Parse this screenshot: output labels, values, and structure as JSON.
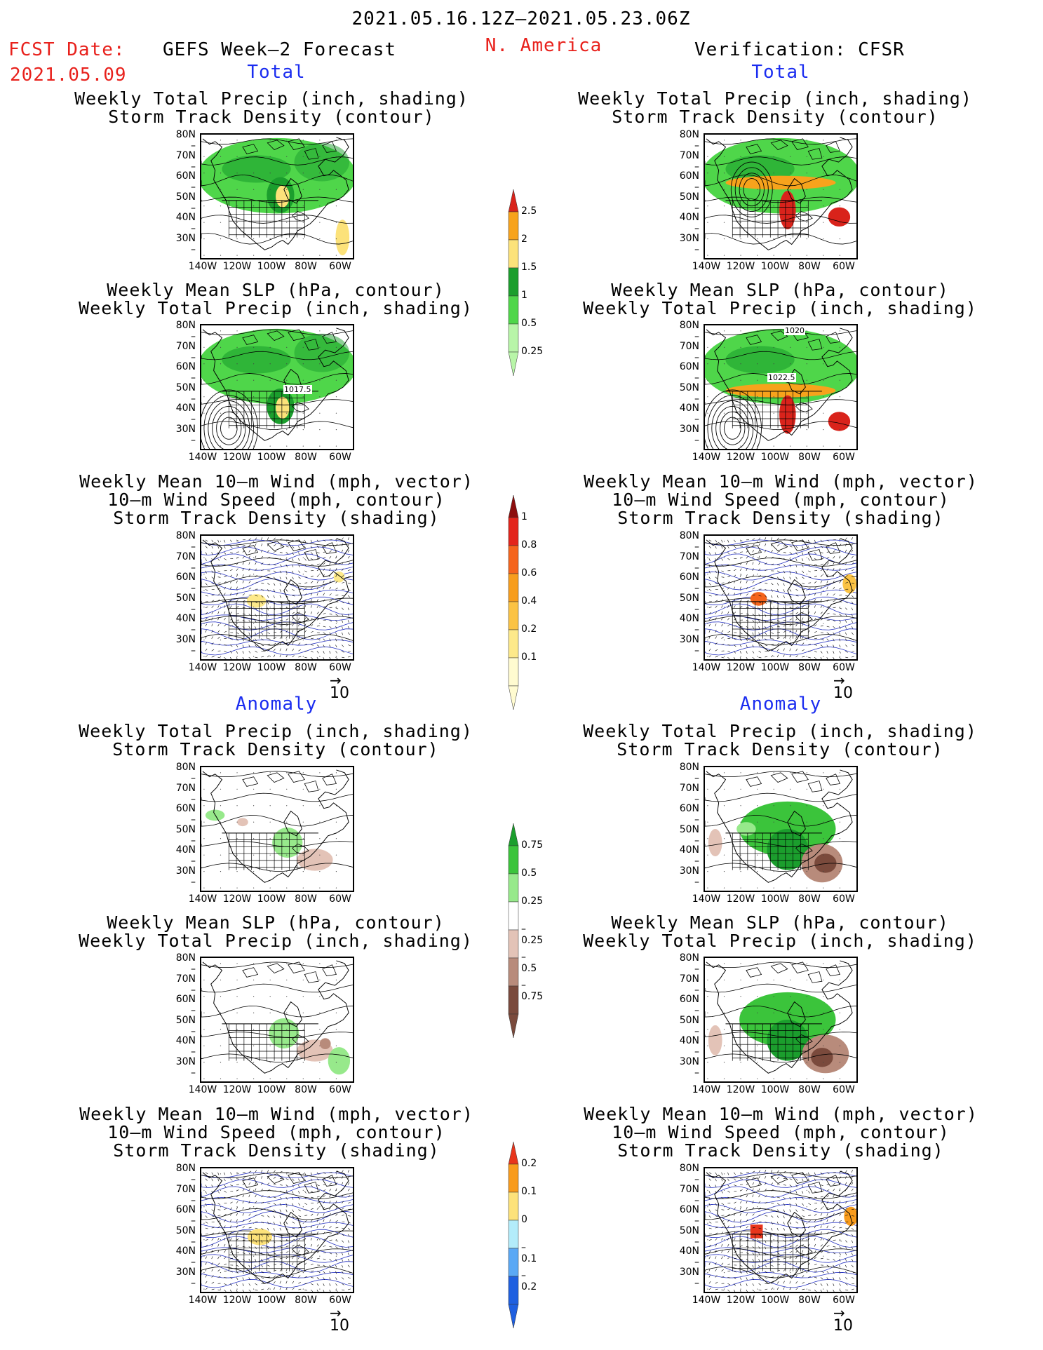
{
  "header": {
    "period": "2021.05.16.12Z–2021.05.23.06Z",
    "fcst_label": "FCST Date:",
    "fcst_date": "2021.05.09",
    "left_title": "GEFS Week–2 Forecast",
    "region": "N. America",
    "right_title": "Verification: CFSR"
  },
  "sections": {
    "total": "Total",
    "anomaly": "Anomaly"
  },
  "panel_titles": {
    "precip_track": [
      "Weekly Total Precip (inch, shading)",
      "Storm Track Density (contour)"
    ],
    "slp_precip": [
      "Weekly Mean SLP (hPa, contour)",
      "Weekly Total Precip (inch, shading)"
    ],
    "wind_track": [
      "Weekly Mean 10–m Wind (mph, vector)",
      "10–m Wind Speed (mph, contour)",
      "Storm Track Density (shading)"
    ]
  },
  "axes": {
    "lat_ticks": [
      "80N",
      "70N",
      "60N",
      "50N",
      "40N",
      "30N"
    ],
    "lon_ticks": [
      "140W",
      "120W",
      "100W",
      "80W",
      "60W"
    ]
  },
  "contour_labels": {
    "gefs_slp": "1017.5",
    "cfsr_slp_1": "1020",
    "cfsr_slp_2": "1022.5"
  },
  "vector_reference": "10",
  "colorbars": {
    "precip_total": {
      "levels": [
        "2.5",
        "2",
        "1.5",
        "1",
        "0.5",
        "0.25"
      ],
      "colors": [
        "#d9231b",
        "#f7a31c",
        "#fce27a",
        "#1b9e2d",
        "#4fd64a",
        "#b8f5a8"
      ]
    },
    "track_total": {
      "levels": [
        "1",
        "0.8",
        "0.6",
        "0.4",
        "0.2",
        "0.1"
      ],
      "colors": [
        "#8c0d0d",
        "#e3241b",
        "#f5641c",
        "#f79d1c",
        "#fbc344",
        "#fde98a",
        "#fffbd0"
      ]
    },
    "precip_anom": {
      "levels": [
        "0.75",
        "0.5",
        "0.25",
        "–0.25",
        "–0.5",
        "–0.75"
      ],
      "colors": [
        "#1b9e2d",
        "#3bc43b",
        "#97e98b",
        "#ffffff",
        "#e3c3b7",
        "#b88b7b",
        "#7a4a3c"
      ]
    },
    "track_anom": {
      "levels": [
        "0.2",
        "0.1",
        "0",
        "–0.1",
        "–0.2"
      ],
      "colors": [
        "#e8351c",
        "#f89b1c",
        "#fde27a",
        "#b3ecfa",
        "#5aa8f5",
        "#1e5fe0"
      ]
    }
  }
}
